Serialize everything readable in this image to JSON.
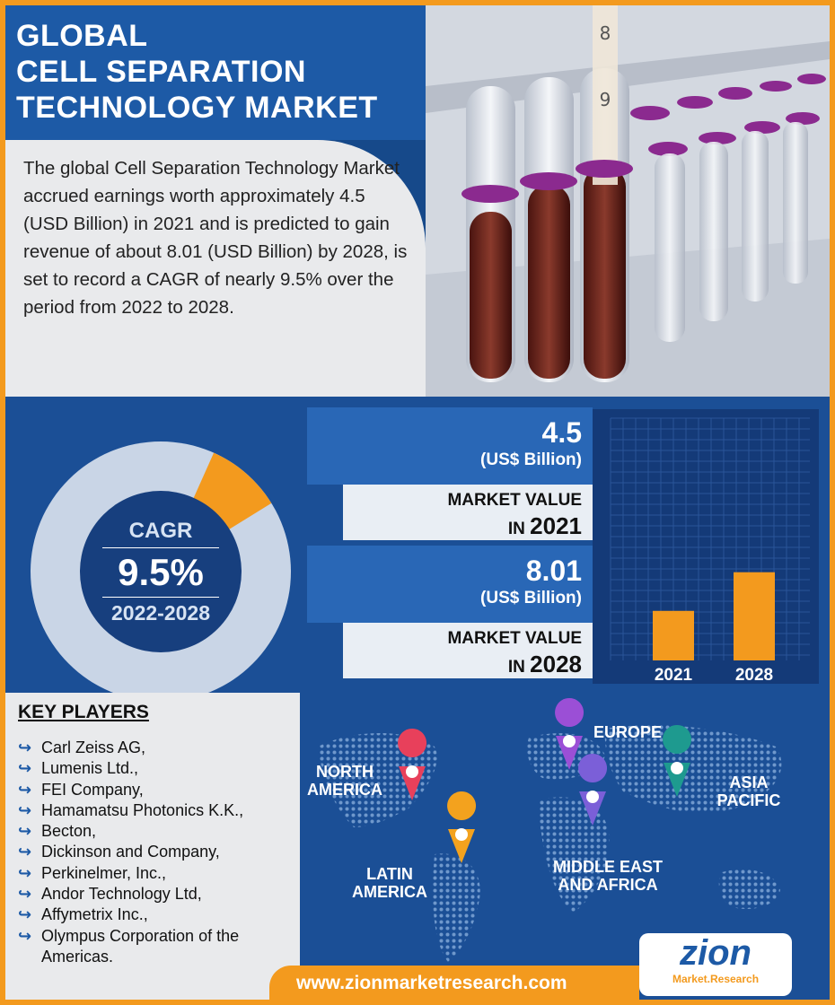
{
  "title": {
    "line1": "GLOBAL",
    "line2": "CELL SEPARATION",
    "line3": "TECHNOLOGY MARKET"
  },
  "intro": "The global Cell Separation Technology Market accrued earnings worth approximately 4.5 (USD Billion) in 2021 and is predicted to gain revenue of about 8.01 (USD Billion) by 2028, is set to record a CAGR of nearly 9.5% over the period from 2022 to 2028.",
  "photo": {
    "tube_mark_top": "8",
    "tube_mark_bottom": "9"
  },
  "cagr": {
    "label": "CAGR",
    "value": "9.5%",
    "period": "2022-2028",
    "highlight_fraction": 0.095
  },
  "market_values": [
    {
      "value": "4.5",
      "unit": "(US$ Billion)",
      "label": "MARKET VALUE",
      "prefix": "IN",
      "year": "2021"
    },
    {
      "value": "8.01",
      "unit": "(US$ Billion)",
      "label": "MARKET VALUE",
      "prefix": "IN",
      "year": "2028"
    }
  ],
  "chart_data": {
    "type": "bar",
    "categories": [
      "2021",
      "2028"
    ],
    "values": [
      4.5,
      8.01
    ],
    "title": "",
    "xlabel": "",
    "ylabel": "",
    "grid": true
  },
  "key_players": {
    "title": "KEY PLAYERS",
    "items": [
      "Carl Zeiss AG,",
      "Lumenis Ltd.,",
      "FEI Company,",
      "Hamamatsu Photonics K.K.,",
      "Becton,",
      "Dickinson and Company,",
      "Perkinelmer, Inc.,",
      "Andor Technology Ltd,",
      "Affymetrix Inc.,",
      "Olympus Corporation of the Americas."
    ]
  },
  "regions": {
    "north_america_1": "NORTH",
    "north_america_2": "AMERICA",
    "europe": "EUROPE",
    "asia_pacific_1": "ASIA",
    "asia_pacific_2": "PACIFIC",
    "latin_america_1": "LATIN",
    "latin_america_2": "AMERICA",
    "mea_1": "MIDDLE EAST",
    "mea_2": "AND AFRICA"
  },
  "footer": {
    "url": "www.zionmarketresearch.com",
    "logo_main": "zion",
    "logo_sub": "Market.Research"
  },
  "colors": {
    "orange": "#f39a1e",
    "navy": "#16498a",
    "blue": "#1d5aa6",
    "light": "#e9eaec",
    "pin_red": "#e8405b",
    "pin_purple": "#9b4fd6",
    "pin_teal": "#1e9a8f",
    "pin_orange": "#f3a21e",
    "pin_violet": "#7b5fd8"
  }
}
